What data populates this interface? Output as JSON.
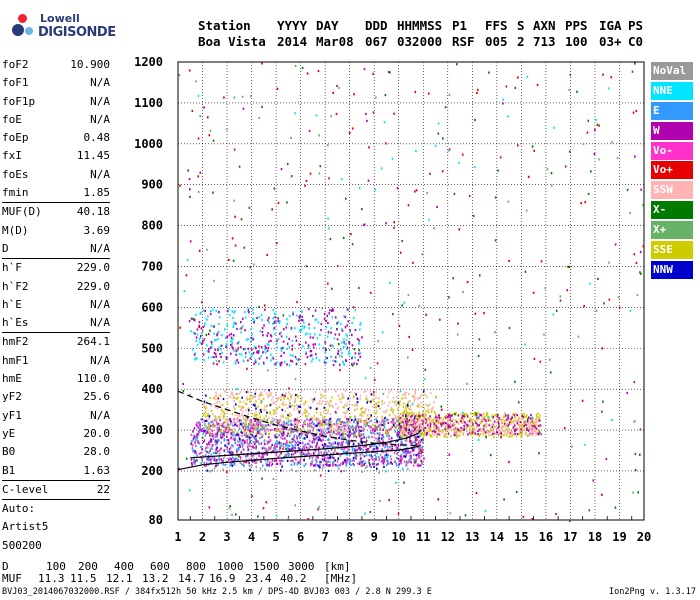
{
  "logo": {
    "line1": "Lowell",
    "line2": "DIGISONDE"
  },
  "header": {
    "columns": [
      {
        "label": "Station",
        "value": "Boa Vista"
      },
      {
        "label": "YYYY",
        "value": "2014"
      },
      {
        "label": "DAY",
        "value": "Mar08"
      },
      {
        "label": "DDD",
        "value": "067"
      },
      {
        "label": "HHMMSS",
        "value": "032000"
      },
      {
        "label": "P1",
        "value": "RSF"
      },
      {
        "label": "FFS",
        "value": "005"
      },
      {
        "label": "S",
        "value": "2"
      },
      {
        "label": "AXN",
        "value": "713"
      },
      {
        "label": "PPS",
        "value": "100"
      },
      {
        "label": "IGA",
        "value": "03+"
      },
      {
        "label": "PS",
        "value": "C0"
      }
    ]
  },
  "params": {
    "group1": [
      {
        "name": "foF2",
        "value": "10.900"
      },
      {
        "name": "foF1",
        "value": "N/A"
      },
      {
        "name": "foF1p",
        "value": "N/A"
      },
      {
        "name": "foE",
        "value": "N/A"
      },
      {
        "name": "foEp",
        "value": "0.48"
      },
      {
        "name": "fxI",
        "value": "11.45"
      },
      {
        "name": "foEs",
        "value": "N/A"
      },
      {
        "name": "fmin",
        "value": "1.85"
      }
    ],
    "group2": [
      {
        "name": "MUF(D)",
        "value": "40.18"
      },
      {
        "name": "M(D)",
        "value": "3.69"
      },
      {
        "name": "D",
        "value": "N/A"
      }
    ],
    "group3": [
      {
        "name": "h`F",
        "value": "229.0"
      },
      {
        "name": "h`F2",
        "value": "229.0"
      },
      {
        "name": "h`E",
        "value": "N/A"
      },
      {
        "name": "h`Es",
        "value": "N/A"
      }
    ],
    "group4": [
      {
        "name": "hmF2",
        "value": "264.1"
      },
      {
        "name": "hmF1",
        "value": "N/A"
      },
      {
        "name": "hmE",
        "value": "110.0"
      },
      {
        "name": "yF2",
        "value": "25.6"
      },
      {
        "name": "yF1",
        "value": "N/A"
      },
      {
        "name": "yE",
        "value": "20.0"
      },
      {
        "name": "B0",
        "value": "28.0"
      },
      {
        "name": "B1",
        "value": "1.63"
      }
    ],
    "group5": [
      {
        "name": "C-level",
        "value": "22"
      }
    ],
    "auto": [
      "Auto:",
      "Artist5",
      "500200"
    ]
  },
  "legend": [
    {
      "label": "NoVal",
      "color": "#999999"
    },
    {
      "label": "NNE",
      "color": "#00e5ff"
    },
    {
      "label": "E",
      "color": "#3399ff"
    },
    {
      "label": "W",
      "color": "#b000b0"
    },
    {
      "label": "Vo-",
      "color": "#ff33cc"
    },
    {
      "label": "Vo+",
      "color": "#e60000"
    },
    {
      "label": "SSW",
      "color": "#ffb3b3"
    },
    {
      "label": "X-",
      "color": "#007a00"
    },
    {
      "label": "X+",
      "color": "#66b266"
    },
    {
      "label": "SSE",
      "color": "#cccc00"
    },
    {
      "label": "NNW",
      "color": "#0000cc"
    }
  ],
  "footer": {
    "d_label": "D",
    "d_values": [
      "100",
      "200",
      "400",
      "600",
      "800",
      "1000",
      "1500",
      "3000"
    ],
    "d_unit": "[km]",
    "muf_label": "MUF",
    "muf_values": [
      "11.3",
      "11.5",
      "12.1",
      "13.2",
      "14.7",
      "16.9",
      "23.4",
      "40.2"
    ],
    "muf_unit": "[MHz]",
    "file_info": "BVJ03_2014067032000.RSF / 384fx512h 50 kHz 2.5 km / DPS-4D BVJ03 003 / 2.8 N 299.3 E",
    "version": "Ion2Png v. 1.3.17"
  },
  "chart_data": {
    "type": "scatter",
    "xlim": [
      1,
      20
    ],
    "ylim": [
      80,
      1200
    ],
    "x_ticks": [
      1,
      2,
      3,
      4,
      5,
      6,
      7,
      8,
      9,
      10,
      11,
      12,
      13,
      14,
      15,
      16,
      17,
      18,
      19,
      20
    ],
    "x_tick_labels": [
      "1",
      "2",
      "3",
      "4",
      "5",
      "6",
      "7",
      "8",
      "9",
      "10",
      "11",
      "12",
      "13",
      "14",
      "15",
      "16",
      "17",
      "18",
      "19",
      "20"
    ],
    "y_ticks": [
      80,
      200,
      300,
      400,
      500,
      600,
      700,
      800,
      900,
      1000,
      1100,
      1200
    ],
    "y_tick_labels": [
      "80",
      "200",
      "300",
      "400",
      "500",
      "600",
      "700",
      "800",
      "900",
      "1000",
      "1100",
      "1200"
    ],
    "grid": true,
    "traces": [
      {
        "name": "F2-trace",
        "points": [
          [
            1.0,
            203
          ],
          [
            2.0,
            215
          ],
          [
            3.0,
            221
          ],
          [
            4.0,
            226
          ],
          [
            5.0,
            231
          ],
          [
            6.0,
            235
          ],
          [
            7.0,
            239
          ],
          [
            8.0,
            243
          ],
          [
            9.0,
            247
          ],
          [
            10.0,
            251
          ],
          [
            10.5,
            256
          ],
          [
            10.9,
            262
          ]
        ]
      },
      {
        "name": "profile",
        "points": [
          [
            1.5,
            232
          ],
          [
            3.0,
            238
          ],
          [
            5.0,
            246
          ],
          [
            7.0,
            254
          ],
          [
            8.5,
            262
          ],
          [
            9.5,
            270
          ],
          [
            10.3,
            280
          ],
          [
            10.8,
            292
          ],
          [
            10.9,
            300
          ]
        ]
      },
      {
        "name": "F2-upper",
        "points": [
          [
            1.0,
            395
          ],
          [
            2.0,
            370
          ],
          [
            3.0,
            350
          ],
          [
            4.0,
            330
          ],
          [
            5.0,
            312
          ],
          [
            6.0,
            298
          ],
          [
            7.0,
            285
          ],
          [
            8.0,
            275
          ],
          [
            9.0,
            268
          ],
          [
            10.0,
            264
          ],
          [
            10.9,
            262
          ]
        ]
      }
    ],
    "clusters": [
      {
        "x": [
          1.5,
          11.0
        ],
        "y": [
          215,
          330
        ],
        "legend_index": 2,
        "count": 700
      },
      {
        "x": [
          1.5,
          11.0
        ],
        "y": [
          215,
          330
        ],
        "legend_index": 3,
        "count": 500
      },
      {
        "x": [
          1.5,
          11.0
        ],
        "y": [
          215,
          330
        ],
        "legend_index": 4,
        "count": 350
      },
      {
        "x": [
          2.0,
          11.5
        ],
        "y": [
          300,
          400
        ],
        "legend_index": 6,
        "count": 450
      },
      {
        "x": [
          2.0,
          11.5
        ],
        "y": [
          290,
          390
        ],
        "legend_index": 9,
        "count": 300
      },
      {
        "x": [
          10.0,
          15.8
        ],
        "y": [
          285,
          345
        ],
        "legend_index": 9,
        "count": 350
      },
      {
        "x": [
          10.0,
          15.8
        ],
        "y": [
          290,
          340
        ],
        "legend_index": 3,
        "count": 250
      },
      {
        "x": [
          10.0,
          15.8
        ],
        "y": [
          290,
          330
        ],
        "legend_index": 6,
        "count": 200
      },
      {
        "x": [
          1.5,
          8.5
        ],
        "y": [
          460,
          600
        ],
        "legend_index": 1,
        "count": 250
      },
      {
        "x": [
          1.5,
          8.5
        ],
        "y": [
          460,
          600
        ],
        "legend_index": 3,
        "count": 220
      },
      {
        "x": [
          2.0,
          11.0
        ],
        "y": [
          200,
          400
        ],
        "legend_index": 10,
        "count": 150
      },
      {
        "x": [
          2.0,
          11.0
        ],
        "y": [
          200,
          330
        ],
        "legend_index": 0,
        "count": 200
      },
      {
        "x": [
          1.0,
          20.0
        ],
        "y": [
          80,
          1200
        ],
        "legend_index": 5,
        "count": 120
      },
      {
        "x": [
          1.0,
          20.0
        ],
        "y": [
          80,
          1200
        ],
        "legend_index": 7,
        "count": 110
      },
      {
        "x": [
          1.0,
          20.0
        ],
        "y": [
          80,
          1200
        ],
        "legend_index": 8,
        "count": 90
      },
      {
        "x": [
          1.0,
          20.0
        ],
        "y": [
          80,
          1200
        ],
        "legend_index": 3,
        "count": 80
      },
      {
        "x": [
          1.0,
          20.0
        ],
        "y": [
          80,
          1200
        ],
        "legend_index": 1,
        "count": 60
      }
    ]
  }
}
